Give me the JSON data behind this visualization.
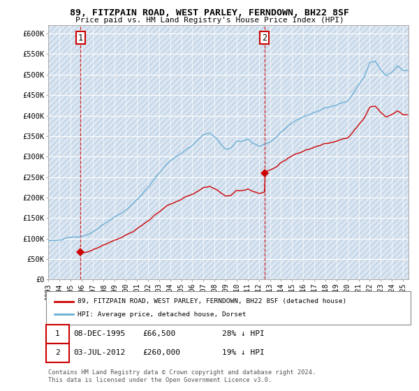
{
  "title": "89, FITZPAIN ROAD, WEST PARLEY, FERNDOWN, BH22 8SF",
  "subtitle": "Price paid vs. HM Land Registry's House Price Index (HPI)",
  "ylabel_values": [
    "£0",
    "£50K",
    "£100K",
    "£150K",
    "£200K",
    "£250K",
    "£300K",
    "£350K",
    "£400K",
    "£450K",
    "£500K",
    "£550K",
    "£600K"
  ],
  "ylim": [
    0,
    620000
  ],
  "yticks": [
    0,
    50000,
    100000,
    150000,
    200000,
    250000,
    300000,
    350000,
    400000,
    450000,
    500000,
    550000,
    600000
  ],
  "xlim_start": 1993.0,
  "xlim_end": 2025.5,
  "sale1_date": 1995.92,
  "sale1_y": 66500,
  "sale2_date": 2012.5,
  "sale2_y": 260000,
  "legend_line1": "89, FITZPAIN ROAD, WEST PARLEY, FERNDOWN, BH22 8SF (detached house)",
  "legend_line2": "HPI: Average price, detached house, Dorset",
  "footer": "Contains HM Land Registry data © Crown copyright and database right 2024.\nThis data is licensed under the Open Government Licence v3.0.",
  "bg_color": "#dce6f1",
  "hatch_color": "#b8cfe4",
  "grid_color": "#ffffff",
  "red_color": "#cc0000",
  "blue_color": "#6baed6",
  "note1_label": "1",
  "note2_label": "2",
  "row1_date": "08-DEC-1995",
  "row1_price": "£66,500",
  "row1_hpi": "28% ↓ HPI",
  "row2_date": "03-JUL-2012",
  "row2_price": "£260,000",
  "row2_hpi": "19% ↓ HPI"
}
